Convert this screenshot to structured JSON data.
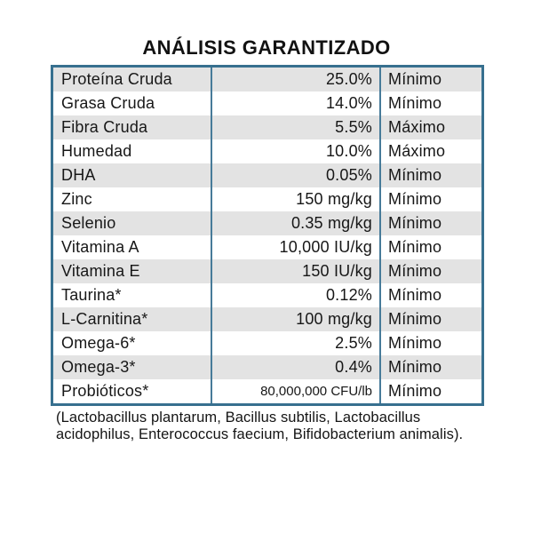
{
  "title": "ANÁLISIS GARANTIZADO",
  "colors": {
    "table_border": "#37708f",
    "column_separator": "#477b99",
    "row_stripe": "#e3e3e3",
    "text": "#171717",
    "background": "#ffffff"
  },
  "table": {
    "rows": [
      {
        "name": "Proteína Cruda",
        "value": "25.0%",
        "limit": "Mínimo"
      },
      {
        "name": "Grasa Cruda",
        "value": "14.0%",
        "limit": "Mínimo"
      },
      {
        "name": "Fibra Cruda",
        "value": "5.5%",
        "limit": "Máximo"
      },
      {
        "name": "Humedad",
        "value": "10.0%",
        "limit": "Máximo"
      },
      {
        "name": "DHA",
        "value": "0.05%",
        "limit": "Mínimo"
      },
      {
        "name": "Zinc",
        "value": "150 mg/kg",
        "limit": "Mínimo"
      },
      {
        "name": "Selenio",
        "value": "0.35 mg/kg",
        "limit": "Mínimo"
      },
      {
        "name": "Vitamina A",
        "value": "10,000 IU/kg",
        "limit": "Mínimo"
      },
      {
        "name": "Vitamina E",
        "value": "150 IU/kg",
        "limit": "Mínimo"
      },
      {
        "name": "Taurina*",
        "value": "0.12%",
        "limit": "Mínimo"
      },
      {
        "name": "L-Carnitina*",
        "value": "100 mg/kg",
        "limit": "Mínimo"
      },
      {
        "name": "Omega-6*",
        "value": "2.5%",
        "limit": "Mínimo"
      },
      {
        "name": "Omega-3*",
        "value": "0.4%",
        "limit": "Mínimo"
      },
      {
        "name": "Probióticos*",
        "value": "80,000,000 CFU/lb",
        "limit": "Mínimo"
      }
    ]
  },
  "footnote": "(Lactobacillus plantarum, Bacillus subtilis, Lactobacillus acidophilus, Enterococcus faecium, Bifidobacterium animalis)."
}
